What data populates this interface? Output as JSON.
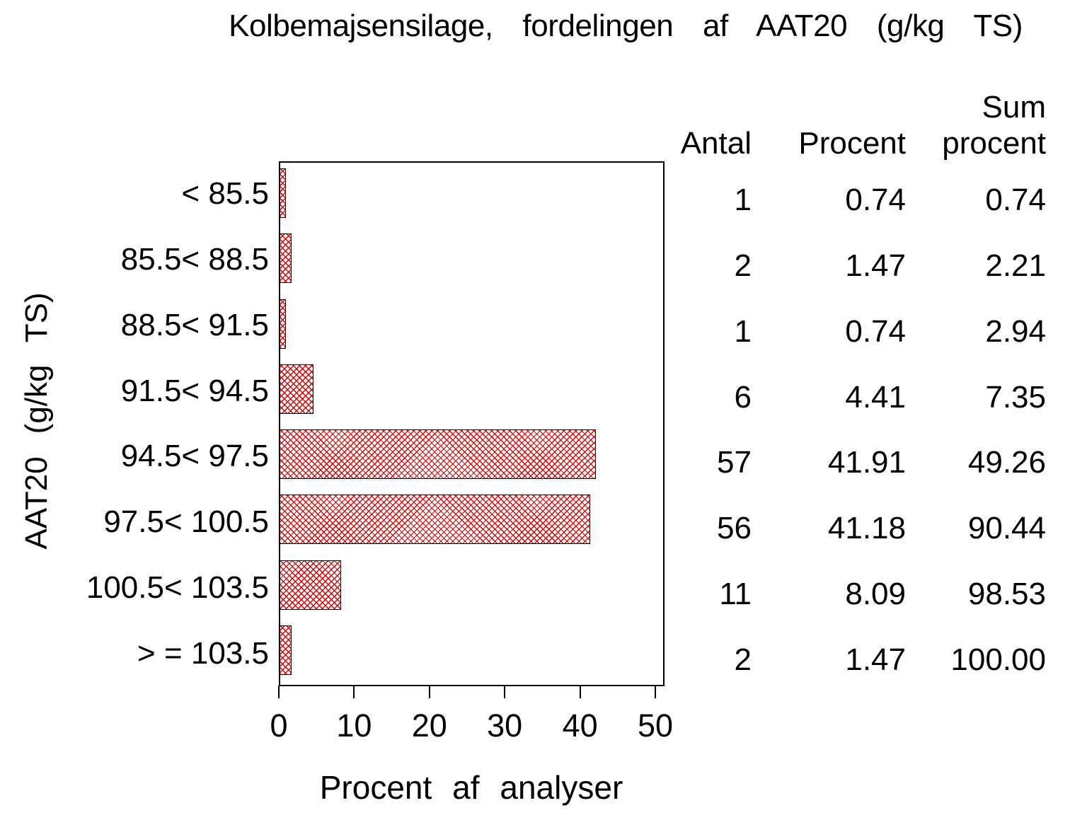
{
  "title": "Kolbemajsensilage, fordelingen af AAT20 (g/kg TS)",
  "chart_data": {
    "type": "bar",
    "orientation": "horizontal",
    "title": "Kolbemajsensilage, fordelingen af AAT20 (g/kg TS)",
    "ylabel": "AAT20 (g/kg TS)",
    "xlabel": "Procent af analyser",
    "xlim": [
      0,
      50
    ],
    "xticks": [
      "0",
      "10",
      "20",
      "30",
      "40",
      "50"
    ],
    "grid": "off",
    "bar_style": "red diagonal crosshatch on white, black outline",
    "bar_pattern_color": "#e00000",
    "categories": [
      "< 85.5",
      "85.5< 88.5",
      "88.5< 91.5",
      "91.5< 94.5",
      "94.5< 97.5",
      "97.5< 100.5",
      "100.5< 103.5",
      "> = 103.5"
    ],
    "values": [
      0.74,
      1.47,
      0.74,
      4.41,
      41.91,
      41.18,
      8.09,
      1.47
    ]
  },
  "table": {
    "headers": {
      "antal": "Antal",
      "procent": "Procent",
      "sum_procent": "Sum\nprocent"
    },
    "rows": [
      {
        "antal": "1",
        "procent": "0.74",
        "sum": "0.74"
      },
      {
        "antal": "2",
        "procent": "1.47",
        "sum": "2.21"
      },
      {
        "antal": "1",
        "procent": "0.74",
        "sum": "2.94"
      },
      {
        "antal": "6",
        "procent": "4.41",
        "sum": "7.35"
      },
      {
        "antal": "57",
        "procent": "41.91",
        "sum": "49.26"
      },
      {
        "antal": "56",
        "procent": "41.18",
        "sum": "90.44"
      },
      {
        "antal": "11",
        "procent": "8.09",
        "sum": "98.53"
      },
      {
        "antal": "2",
        "procent": "1.47",
        "sum": "100.00"
      }
    ]
  }
}
